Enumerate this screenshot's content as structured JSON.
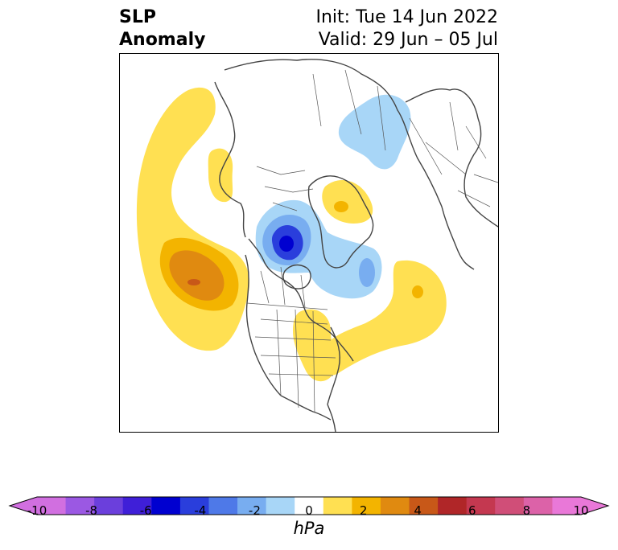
{
  "title": {
    "left_line1": "SLP",
    "left_line2": "Anomaly",
    "right_line1": "Init: Tue 14 Jun 2022",
    "right_line2": "Valid: 29 Jun – 05 Jul"
  },
  "map": {
    "projection": "polar stereographic (North America / Arctic)",
    "features": [
      "coastlines",
      "country borders",
      "state/province borders"
    ]
  },
  "colorbar": {
    "units": "hPa",
    "tick_labels": [
      "-10",
      "-8",
      "-6",
      "-4",
      "-2",
      "0",
      "2",
      "4",
      "6",
      "8",
      "10"
    ],
    "levels": [
      -10,
      -9,
      -8,
      -7,
      -6,
      -5,
      -4,
      -3,
      -2,
      -1,
      1,
      2,
      3,
      4,
      5,
      6,
      7,
      8,
      9,
      10
    ],
    "colors": [
      "#d16fe0",
      "#9b58e3",
      "#6b3fdc",
      "#3f1fd8",
      "#0000d0",
      "#2a3edc",
      "#4e79e8",
      "#78adf0",
      "#a8d6f7",
      "#ffffff",
      "#ffe052",
      "#f3b400",
      "#e08a10",
      "#c85818",
      "#b02628",
      "#c43850",
      "#d04e78",
      "#dc62a8",
      "#e978d8"
    ],
    "extend": "both"
  }
}
